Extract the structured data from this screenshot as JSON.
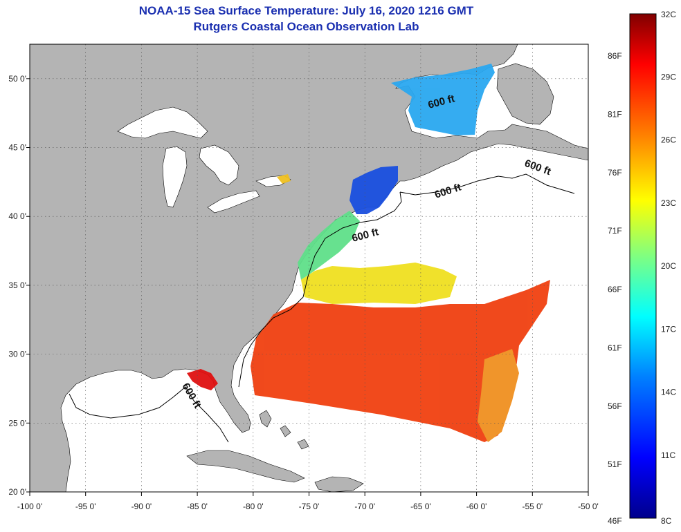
{
  "header": {
    "title": "NOAA-15 Sea Surface Temperature:  July 16, 2020 1216 GMT",
    "subtitle": "Rutgers Coastal Ocean Observation Lab"
  },
  "map": {
    "lon_range": [
      -100,
      -50
    ],
    "lat_range": [
      20,
      52.5
    ],
    "lon_ticks": [
      {
        "value": -100,
        "label": "-100 0'"
      },
      {
        "value": -95,
        "label": "-95 0'"
      },
      {
        "value": -90,
        "label": "-90 0'"
      },
      {
        "value": -85,
        "label": "-85 0'"
      },
      {
        "value": -80,
        "label": "-80 0'"
      },
      {
        "value": -75,
        "label": "-75 0'"
      },
      {
        "value": -70,
        "label": "-70 0'"
      },
      {
        "value": -65,
        "label": "-65 0'"
      },
      {
        "value": -60,
        "label": "-60 0'"
      },
      {
        "value": -55,
        "label": "-55 0'"
      },
      {
        "value": -50,
        "label": "-50 0'"
      }
    ],
    "lat_ticks": [
      {
        "value": 50,
        "label": "50 0'"
      },
      {
        "value": 45,
        "label": "45 0'"
      },
      {
        "value": 40,
        "label": "40 0'"
      },
      {
        "value": 35,
        "label": "35 0'"
      },
      {
        "value": 30,
        "label": "30 0'"
      },
      {
        "value": 25,
        "label": "25 0'"
      },
      {
        "value": 20,
        "label": "20 0'"
      }
    ],
    "contour_labels": [
      "600 ft",
      "600 ft",
      "600 ft",
      "600 ft",
      "600 ft"
    ],
    "colors": {
      "land": "#b4b4b4",
      "water": "#ffffff",
      "grid": "#555555",
      "frame": "#000000"
    }
  },
  "colorbar": {
    "range_c": [
      8,
      32
    ],
    "top_label": "32C",
    "bottom_label": "8C",
    "bottom_f_label": "46F",
    "celsius_labels": [
      {
        "value": 29,
        "label": "29C"
      },
      {
        "value": 26,
        "label": "26C"
      },
      {
        "value": 23,
        "label": "23C"
      },
      {
        "value": 20,
        "label": "20C"
      },
      {
        "value": 17,
        "label": "17C"
      },
      {
        "value": 14,
        "label": "14C"
      },
      {
        "value": 11,
        "label": "11C"
      }
    ],
    "fahrenheit_labels": [
      {
        "value_c": 30,
        "label": "86F"
      },
      {
        "value_c": 27.22,
        "label": "81F"
      },
      {
        "value_c": 24.44,
        "label": "76F"
      },
      {
        "value_c": 21.67,
        "label": "71F"
      },
      {
        "value_c": 18.89,
        "label": "66F"
      },
      {
        "value_c": 16.11,
        "label": "61F"
      },
      {
        "value_c": 13.33,
        "label": "56F"
      },
      {
        "value_c": 10.56,
        "label": "51F"
      }
    ],
    "colors": [
      "#00008c",
      "#0000ff",
      "#0080ff",
      "#00ffff",
      "#80ff80",
      "#ffff00",
      "#ff8000",
      "#ff0000",
      "#800000"
    ]
  }
}
